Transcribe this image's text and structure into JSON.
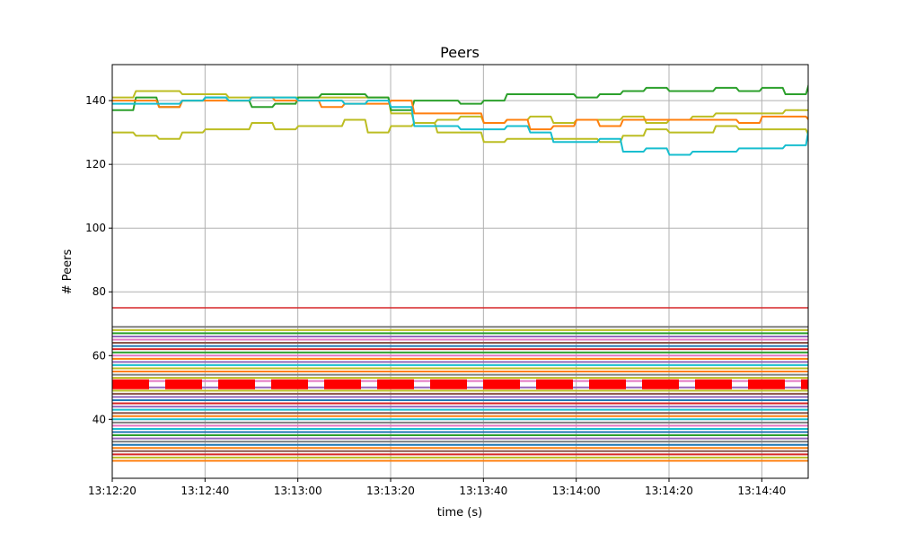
{
  "chart_data": {
    "type": "line",
    "title": "Peers",
    "xlabel": "time (s)",
    "ylabel": "# Peers",
    "xlim": [
      "13:12:20",
      "13:14:50"
    ],
    "ylim": [
      21.5,
      151.3
    ],
    "grid": true,
    "xticks": [
      "13:12:20",
      "13:12:40",
      "13:13:00",
      "13:13:20",
      "13:13:40",
      "13:14:00",
      "13:14:20",
      "13:14:40"
    ],
    "yticks": [
      40,
      60,
      80,
      100,
      120,
      140
    ],
    "x": [
      "13:12:20",
      "13:12:25",
      "13:12:30",
      "13:12:35",
      "13:12:40",
      "13:12:45",
      "13:12:50",
      "13:12:55",
      "13:13:00",
      "13:13:05",
      "13:13:10",
      "13:13:15",
      "13:13:20",
      "13:13:25",
      "13:13:30",
      "13:13:35",
      "13:13:40",
      "13:13:45",
      "13:13:50",
      "13:13:55",
      "13:14:00",
      "13:14:05",
      "13:14:10",
      "13:14:15",
      "13:14:20",
      "13:14:25",
      "13:14:30",
      "13:14:35",
      "13:14:40",
      "13:14:45",
      "13:14:50"
    ],
    "series": [
      {
        "color": "#bcbd22",
        "values": [
          141,
          143,
          143,
          142,
          142,
          141,
          141,
          141,
          141,
          141,
          141,
          141,
          136,
          133,
          130,
          130,
          127,
          128,
          128,
          128,
          128,
          127,
          129,
          131,
          130,
          130,
          132,
          131,
          131,
          131,
          129
        ]
      },
      {
        "color": "#bcbd22",
        "values": [
          130,
          129,
          128,
          130,
          131,
          131,
          133,
          131,
          132,
          132,
          134,
          130,
          132,
          133,
          134,
          135,
          133,
          134,
          135,
          133,
          134,
          134,
          135,
          133,
          134,
          135,
          136,
          136,
          136,
          137,
          137
        ]
      },
      {
        "color": "#2ca02c",
        "values": [
          137,
          141,
          138,
          140,
          141,
          140,
          138,
          139,
          141,
          142,
          142,
          141,
          137,
          140,
          140,
          139,
          140,
          142,
          142,
          142,
          141,
          142,
          143,
          144,
          143,
          143,
          144,
          143,
          144,
          142,
          145
        ]
      },
      {
        "color": "#ff7f0e",
        "values": [
          140,
          140,
          138,
          140,
          140,
          140,
          141,
          140,
          140,
          138,
          139,
          139,
          140,
          136,
          136,
          136,
          133,
          134,
          131,
          132,
          134,
          132,
          134,
          134,
          134,
          134,
          134,
          133,
          135,
          135,
          134
        ]
      },
      {
        "color": "#17becf",
        "values": [
          139,
          139,
          139,
          140,
          141,
          140,
          141,
          141,
          140,
          140,
          139,
          140,
          138,
          132,
          132,
          131,
          131,
          132,
          130,
          127,
          127,
          128,
          124,
          125,
          123,
          124,
          124,
          125,
          125,
          126,
          131
        ]
      }
    ],
    "flat_series": [
      {
        "value": 27,
        "color": "#ff7f0e"
      },
      {
        "value": 28,
        "color": "#bcbd22"
      },
      {
        "value": 29,
        "color": "#d62728"
      },
      {
        "value": 30,
        "color": "#8c564b"
      },
      {
        "value": 31,
        "color": "#ff7f0e"
      },
      {
        "value": 32,
        "color": "#1f77b4"
      },
      {
        "value": 33,
        "color": "#7f7f7f"
      },
      {
        "value": 34,
        "color": "#9467bd"
      },
      {
        "value": 35,
        "color": "#2ca02c"
      },
      {
        "value": 36,
        "color": "#1f77b4"
      },
      {
        "value": 37,
        "color": "#17becf"
      },
      {
        "value": 38,
        "color": "#e377c2"
      },
      {
        "value": 39,
        "color": "#7f7f7f"
      },
      {
        "value": 40,
        "color": "#17becf"
      },
      {
        "value": 41,
        "color": "#ff7f0e"
      },
      {
        "value": 42,
        "color": "#8c564b"
      },
      {
        "value": 43,
        "color": "#17becf"
      },
      {
        "value": 44,
        "color": "#9467bd"
      },
      {
        "value": 45,
        "color": "#d62728"
      },
      {
        "value": 46,
        "color": "#1f77b4"
      },
      {
        "value": 47,
        "color": "#9467bd"
      },
      {
        "value": 48,
        "color": "#8c564b"
      },
      {
        "value": 49,
        "color": "#bcbd22"
      },
      {
        "value": 50,
        "color": "#9467bd"
      },
      {
        "value": 52,
        "color": "#e377c2"
      },
      {
        "value": 53,
        "color": "#bcbd22"
      },
      {
        "value": 54,
        "color": "#7f7f7f"
      },
      {
        "value": 55,
        "color": "#ff7f0e"
      },
      {
        "value": 56,
        "color": "#bcbd22"
      },
      {
        "value": 57,
        "color": "#17becf"
      },
      {
        "value": 58,
        "color": "#9467bd"
      },
      {
        "value": 59,
        "color": "#ff7f0e"
      },
      {
        "value": 60,
        "color": "#e377c2"
      },
      {
        "value": 61,
        "color": "#2ca02c"
      },
      {
        "value": 62,
        "color": "#d62728"
      },
      {
        "value": 63,
        "color": "#1f77b4"
      },
      {
        "value": 64,
        "color": "#8c564b"
      },
      {
        "value": 65,
        "color": "#e377c2"
      },
      {
        "value": 66,
        "color": "#9467bd"
      },
      {
        "value": 67,
        "color": "#2ca02c"
      },
      {
        "value": 68,
        "color": "#bcbd22"
      },
      {
        "value": 69,
        "color": "#7f7f7f"
      }
    ],
    "reference_lines": [
      {
        "value": 75,
        "color": "#d62728",
        "style": "solid"
      },
      {
        "value": 51,
        "color": "#ff0000",
        "style": "dashed"
      }
    ]
  }
}
